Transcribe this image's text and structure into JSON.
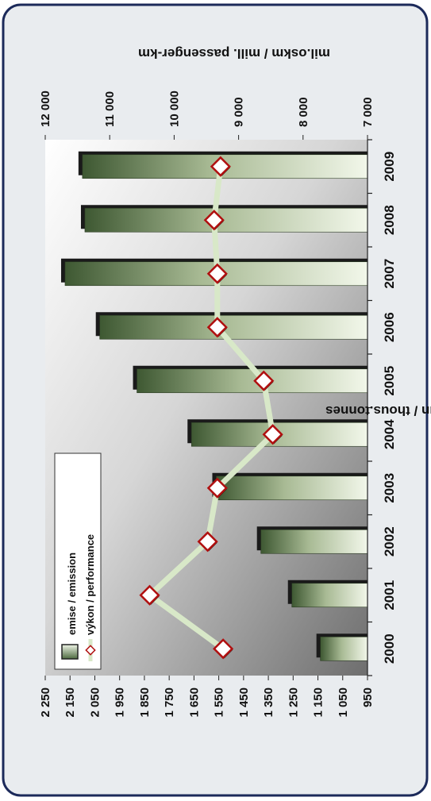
{
  "chart_data": {
    "type": "bar",
    "orientation": "rotated 90 degrees clockwise",
    "categories": [
      "2000",
      "2001",
      "2002",
      "2003",
      "2004",
      "2005",
      "2006",
      "2007",
      "2008",
      "2009"
    ],
    "ylabel_left": "tis.tun / thous.tonnes",
    "ylabel_right": "mil.oskm / mill. passenger-km",
    "left_axis": {
      "range": [
        950,
        2250
      ],
      "ticks": [
        "950",
        "1 050",
        "1 150",
        "1 250",
        "1 350",
        "1 450",
        "1 550",
        "1 650",
        "1 750",
        "1 850",
        "1 950",
        "2 050",
        "2 150",
        "2 250"
      ]
    },
    "right_axis": {
      "range": [
        7000,
        12000
      ],
      "ticks": [
        "7 000",
        "8 000",
        "9 000",
        "10 000",
        "11 000",
        "12 000"
      ]
    },
    "series": [
      {
        "name": "emise / emission",
        "type": "bar",
        "axis": "left",
        "color": "#4e6b40",
        "values": [
          1140,
          1255,
          1380,
          1560,
          1660,
          1880,
          2030,
          2170,
          2090,
          2100
        ]
      },
      {
        "name": "výkon / performance",
        "type": "line",
        "axis": "right",
        "color": "#d8e8c8",
        "marker_color": "#b01010",
        "values": [
          9240,
          10380,
          9480,
          9330,
          8470,
          8610,
          9330,
          9330,
          9380,
          9280
        ]
      }
    ],
    "legend_placement": "inside, top-left of rotated view",
    "grid": false
  },
  "colors": {
    "frame_border": "#1c2a5a",
    "panel_bg": "#e9ecef",
    "bar_dark": "#4e6b40",
    "bar_light": "#eef4e6",
    "line": "#d8e8c8",
    "marker": "#b01010"
  }
}
